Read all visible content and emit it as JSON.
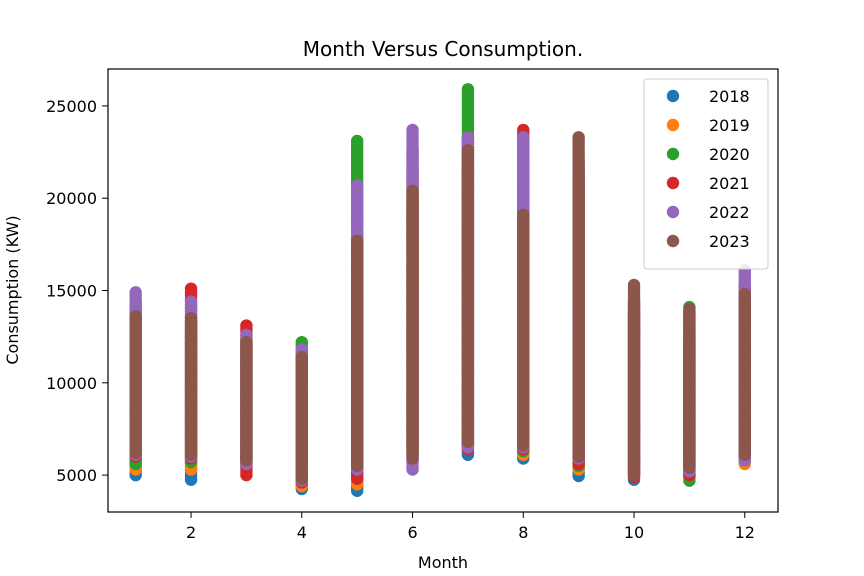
{
  "chart_data": {
    "type": "scatter",
    "title": "Month Versus Consumption.",
    "xlabel": "Month",
    "ylabel": "Consumption (KW)",
    "xlim": [
      0.5,
      12.6
    ],
    "ylim": [
      3000,
      27000
    ],
    "xticks": [
      2,
      4,
      6,
      8,
      10,
      12
    ],
    "yticks": [
      5000,
      10000,
      15000,
      20000,
      25000
    ],
    "grid": false,
    "legend_position": "top-right",
    "months": [
      1,
      2,
      3,
      4,
      5,
      6,
      7,
      8,
      9,
      10,
      11,
      12
    ],
    "series": [
      {
        "name": "2018",
        "color": "#1f77b4",
        "min": [
          5000,
          4750,
          5500,
          4250,
          4150,
          5800,
          6100,
          5900,
          4950,
          4750,
          4950,
          5900
        ],
        "max": [
          12500,
          12800,
          11800,
          10900,
          14500,
          19500,
          21800,
          20500,
          19000,
          13500,
          12600,
          13800
        ]
      },
      {
        "name": "2019",
        "color": "#ff7f0e",
        "min": [
          5300,
          5300,
          5600,
          4400,
          4500,
          6200,
          6500,
          6100,
          5300,
          5000,
          5100,
          5600
        ],
        "max": [
          12800,
          13000,
          12000,
          11000,
          15500,
          20000,
          22500,
          21500,
          20000,
          13800,
          13000,
          14500
        ]
      },
      {
        "name": "2020",
        "color": "#2ca02c",
        "min": [
          5600,
          5700,
          5800,
          5100,
          5100,
          6300,
          6600,
          6300,
          5500,
          5100,
          4700,
          5800
        ],
        "max": [
          13500,
          13300,
          12300,
          12200,
          23100,
          21500,
          25900,
          22500,
          21000,
          14000,
          14100,
          14800
        ]
      },
      {
        "name": "2021",
        "color": "#d62728",
        "min": [
          6000,
          5900,
          5000,
          4600,
          4800,
          6100,
          6400,
          6400,
          5600,
          4900,
          5000,
          5900
        ],
        "max": [
          14300,
          15100,
          13100,
          11300,
          17800,
          22600,
          23300,
          23700,
          21500,
          14300,
          13600,
          15300
        ]
      },
      {
        "name": "2022",
        "color": "#9467bd",
        "min": [
          6100,
          6000,
          5600,
          4700,
          5300,
          5300,
          6500,
          6500,
          5900,
          5200,
          5200,
          5800
        ],
        "max": [
          14900,
          14400,
          12600,
          11800,
          20700,
          23700,
          23300,
          23300,
          22000,
          14600,
          13800,
          16100
        ]
      },
      {
        "name": "2023",
        "color": "#8c564b",
        "min": [
          6200,
          6100,
          5800,
          4800,
          5500,
          5900,
          6800,
          6600,
          6000,
          5000,
          5400,
          6100
        ],
        "max": [
          13600,
          13500,
          12200,
          11400,
          17700,
          20400,
          22600,
          19100,
          23300,
          15300,
          14000,
          14800
        ]
      }
    ]
  }
}
